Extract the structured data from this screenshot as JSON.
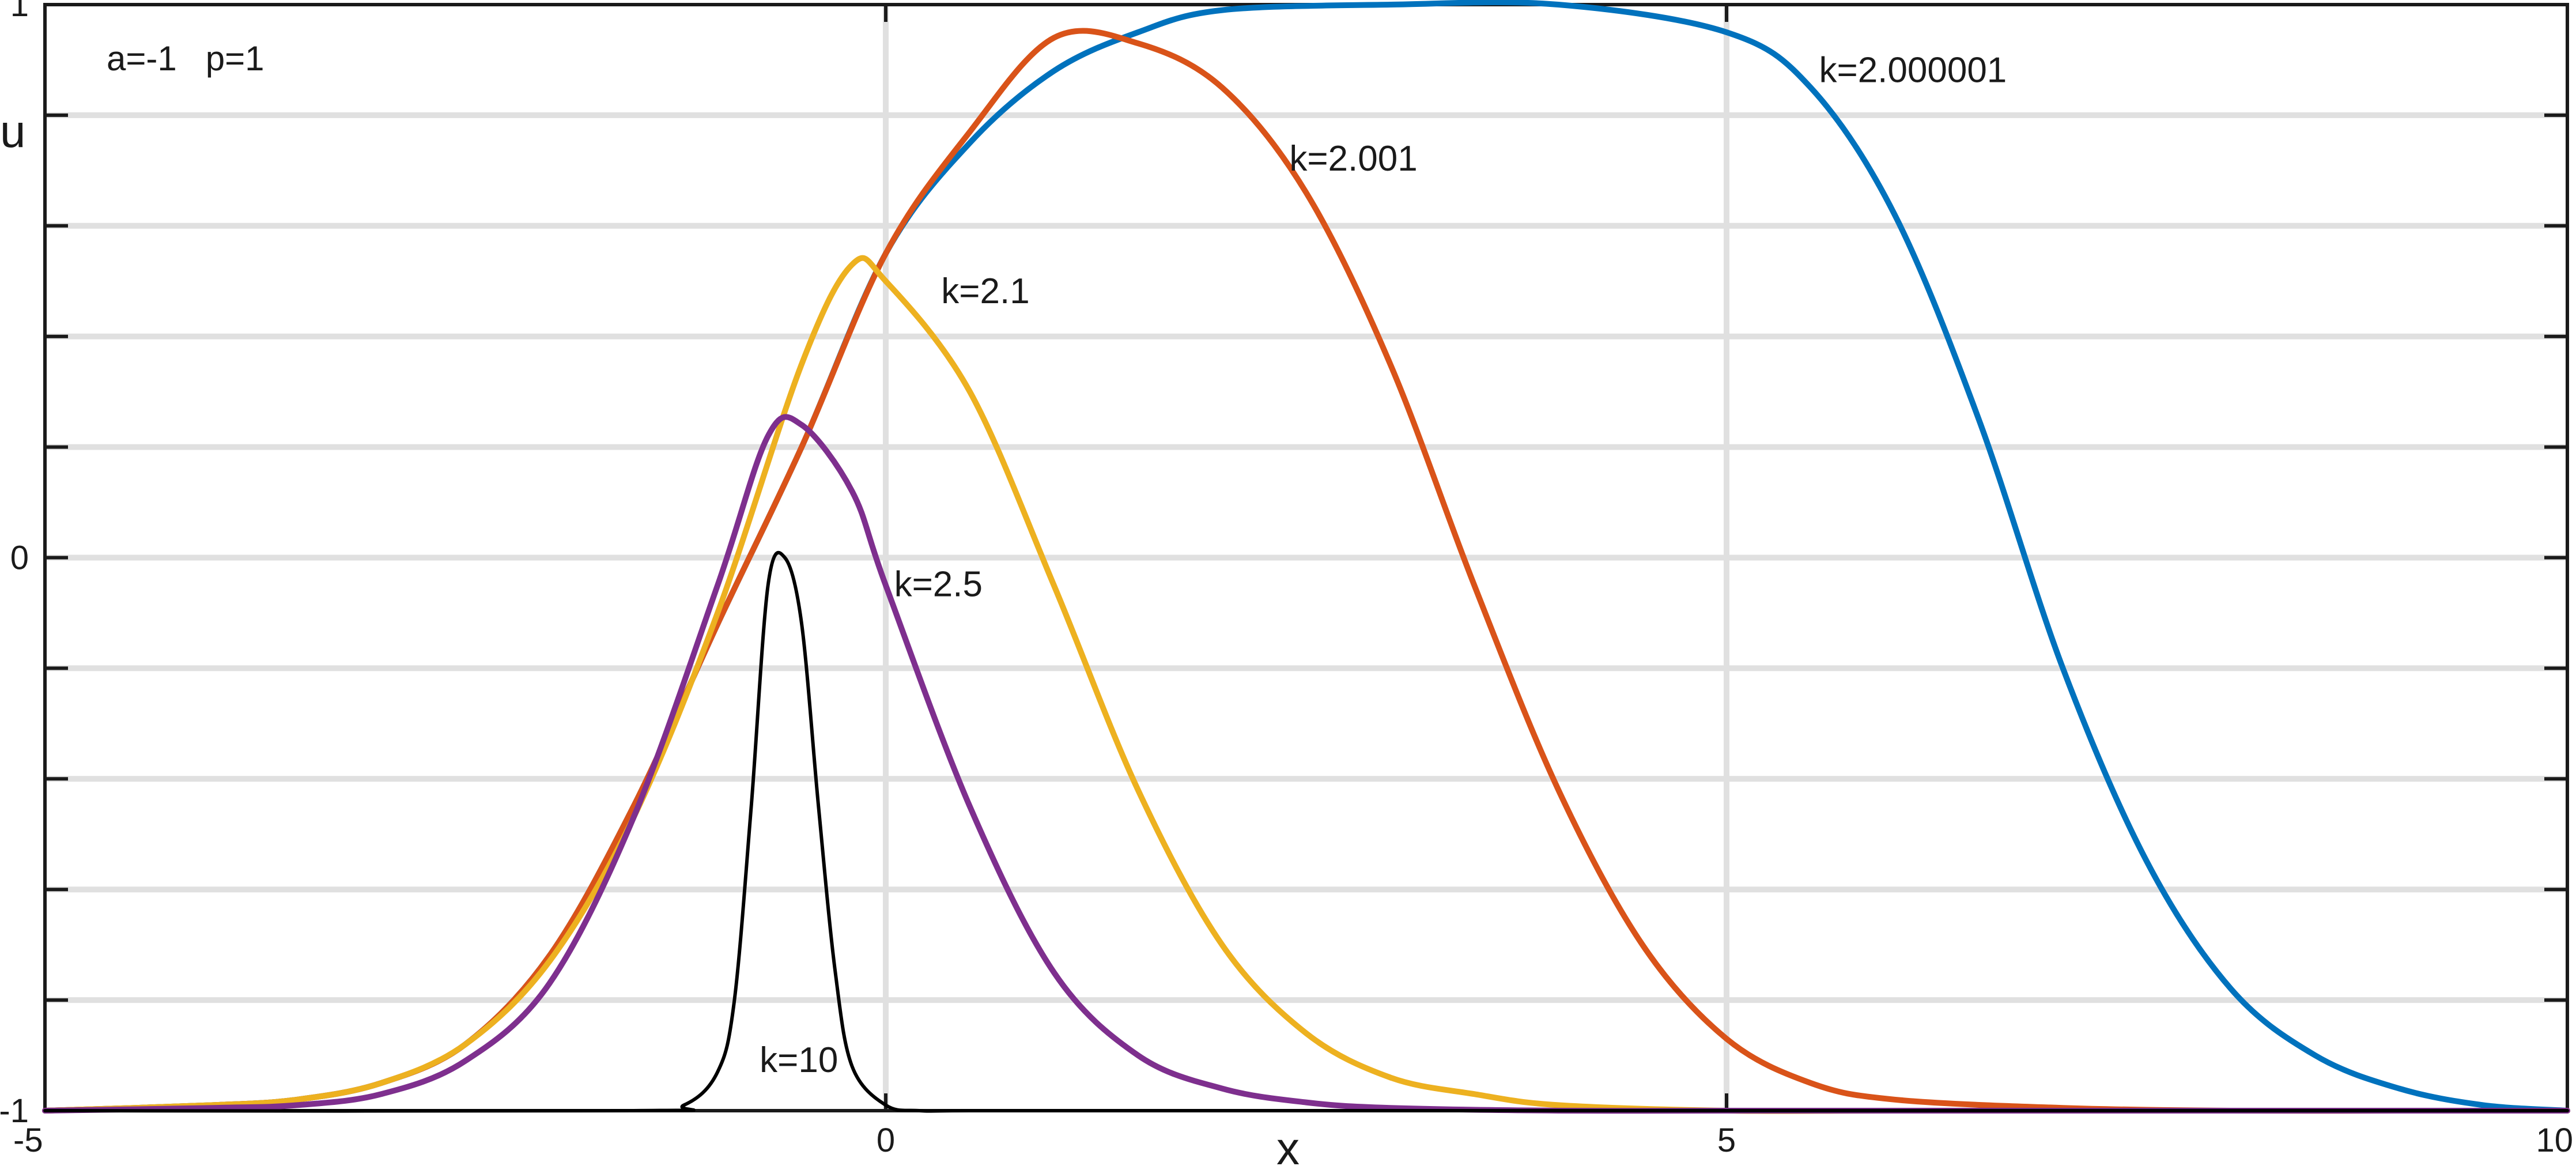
{
  "chart_data": {
    "type": "line",
    "title": "",
    "annotation": "a=-1   p=1",
    "xlabel": "x",
    "ylabel": "u",
    "xlim": [
      -5,
      10
    ],
    "ylim": [
      -1,
      1
    ],
    "x_ticks": [
      -5,
      0,
      5,
      10
    ],
    "x_tick_labels": [
      "-5",
      "0",
      "5",
      "10"
    ],
    "y_ticks": [
      -1,
      0,
      1
    ],
    "y_tick_labels": [
      "-1",
      "0",
      "1"
    ],
    "grid": true,
    "legend": "none",
    "series": [
      {
        "name": "k=2.000001",
        "color": "#0072BD",
        "x": [
          -5,
          -4,
          -3.5,
          -3,
          -2.5,
          -2,
          -1.5,
          -1,
          -0.5,
          0,
          0.5,
          1,
          1.5,
          2,
          3,
          4,
          5,
          5.5,
          6,
          6.5,
          7,
          7.5,
          8,
          8.5,
          9,
          9.5,
          10
        ],
        "y": [
          -1,
          -0.99,
          -0.98,
          -0.95,
          -0.88,
          -0.72,
          -0.45,
          -0.12,
          0.2,
          0.55,
          0.75,
          0.88,
          0.95,
          0.99,
          1,
          1,
          0.95,
          0.85,
          0.62,
          0.25,
          -0.2,
          -0.55,
          -0.78,
          -0.9,
          -0.96,
          -0.99,
          -1
        ]
      },
      {
        "name": "k=2.001",
        "color": "#D95319",
        "x": [
          -5,
          -4,
          -3.5,
          -3,
          -2.5,
          -2,
          -1.5,
          -1,
          -0.5,
          0,
          0.5,
          1,
          1.5,
          2,
          2.5,
          3,
          3.5,
          4,
          4.5,
          5,
          5.5,
          6,
          7,
          8,
          9,
          10
        ],
        "y": [
          -1,
          -0.99,
          -0.98,
          -0.95,
          -0.88,
          -0.72,
          -0.45,
          -0.12,
          0.2,
          0.55,
          0.77,
          0.94,
          0.93,
          0.85,
          0.66,
          0.35,
          -0.05,
          -0.42,
          -0.7,
          -0.87,
          -0.95,
          -0.98,
          -0.995,
          -1,
          -1,
          -1
        ]
      },
      {
        "name": "k=2.1",
        "color": "#EDB120",
        "x": [
          -5,
          -4,
          -3.5,
          -3,
          -2.5,
          -2,
          -1.5,
          -1,
          -0.5,
          -0.2,
          0,
          0.5,
          1,
          1.5,
          2,
          2.5,
          3,
          3.5,
          4,
          5,
          6,
          8,
          10
        ],
        "y": [
          -1,
          -0.99,
          -0.98,
          -0.95,
          -0.88,
          -0.73,
          -0.47,
          -0.1,
          0.35,
          0.53,
          0.5,
          0.3,
          -0.05,
          -0.42,
          -0.7,
          -0.86,
          -0.94,
          -0.97,
          -0.99,
          -1,
          -1,
          -1,
          -1
        ]
      },
      {
        "name": "k=2.5",
        "color": "#7E2F8E",
        "x": [
          -5,
          -4,
          -3.5,
          -3,
          -2.5,
          -2,
          -1.5,
          -1,
          -0.7,
          -0.5,
          -0.2,
          0,
          0.5,
          1,
          1.5,
          2,
          2.5,
          3,
          4,
          5,
          6,
          8,
          10
        ],
        "y": [
          -1,
          -0.995,
          -0.99,
          -0.97,
          -0.91,
          -0.77,
          -0.47,
          -0.05,
          0.22,
          0.24,
          0.12,
          -0.05,
          -0.45,
          -0.75,
          -0.9,
          -0.96,
          -0.985,
          -0.995,
          -1,
          -1,
          -1,
          -1,
          -1
        ]
      },
      {
        "name": "k=10",
        "color": "#000000",
        "x": [
          -5,
          -1.5,
          -1.2,
          -1,
          -0.9,
          -0.8,
          -0.7,
          -0.6,
          -0.5,
          -0.4,
          -0.3,
          -0.2,
          0,
          0.2,
          0.5,
          2,
          10
        ],
        "y": [
          -1,
          -1,
          -0.99,
          -0.93,
          -0.8,
          -0.45,
          -0.05,
          0.0,
          -0.12,
          -0.45,
          -0.75,
          -0.92,
          -0.99,
          -1,
          -1,
          -1,
          -1
        ]
      }
    ],
    "curve_labels": [
      {
        "text": "k=2.000001",
        "x": 5.55,
        "y": 0.86
      },
      {
        "text": "k=2.001",
        "x": 2.4,
        "y": 0.7
      },
      {
        "text": "k=2.1",
        "x": 0.33,
        "y": 0.46
      },
      {
        "text": "k=2.5",
        "x": 0.05,
        "y": -0.07
      },
      {
        "text": "k=10",
        "x": -0.75,
        "y": -0.93
      }
    ]
  }
}
